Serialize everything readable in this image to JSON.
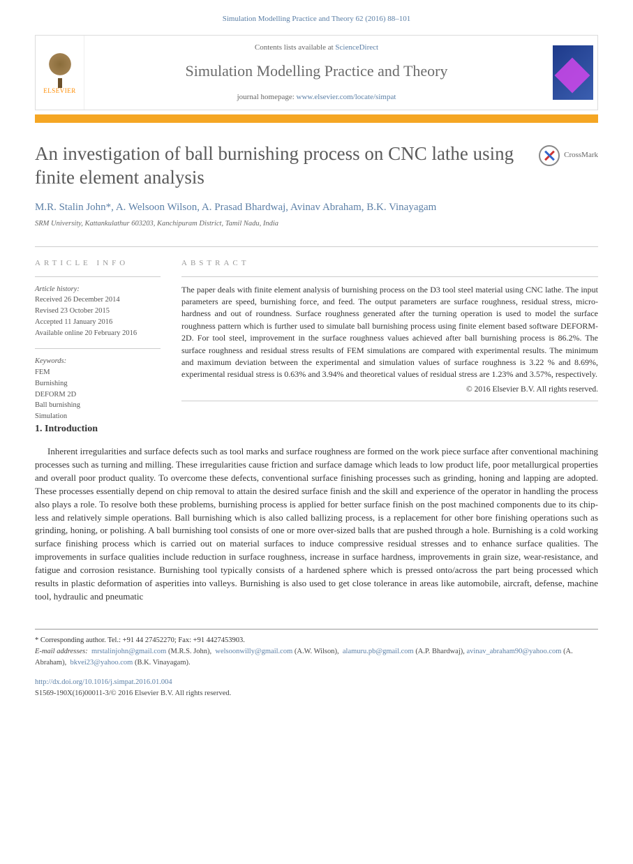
{
  "header": {
    "citation": "Simulation Modelling Practice and Theory 62 (2016) 88–101",
    "contents_prefix": "Contents lists available at ",
    "contents_link": "ScienceDirect",
    "journal_name": "Simulation Modelling Practice and Theory",
    "homepage_prefix": "journal homepage: ",
    "homepage_url": "www.elsevier.com/locate/simpat",
    "publisher": "ELSEVIER",
    "crossmark": "CrossMark"
  },
  "article": {
    "title": "An investigation of ball burnishing process on CNC lathe using finite element analysis",
    "authors": "M.R. Stalin John*, A. Welsoon Wilson, A. Prasad Bhardwaj, Avinav Abraham, B.K. Vinayagam",
    "affiliation": "SRM University, Kattankulathur 603203, Kanchipuram District, Tamil Nadu, India"
  },
  "info": {
    "header": "ARTICLE INFO",
    "history_label": "Article history:",
    "history": [
      "Received 26 December 2014",
      "Revised 23 October 2015",
      "Accepted 11 January 2016",
      "Available online 20 February 2016"
    ],
    "keywords_label": "Keywords:",
    "keywords": [
      "FEM",
      "Burnishing",
      "DEFORM 2D",
      "Ball burnishing",
      "Simulation"
    ]
  },
  "abs": {
    "header": "ABSTRACT",
    "text": "The paper deals with finite element analysis of burnishing process on the D3 tool steel material using CNC lathe. The input parameters are speed, burnishing force, and feed. The output parameters are surface roughness, residual stress, micro-hardness and out of roundness. Surface roughness generated after the turning operation is used to model the surface roughness pattern which is further used to simulate ball burnishing process using finite element based software DEFORM-2D. For tool steel, improvement in the surface roughness values achieved after ball burnishing process is 86.2%. The surface roughness and residual stress results of FEM simulations are compared with experimental results. The minimum and maximum deviation between the experimental and simulation values of surface roughness is 3.22 % and 8.69%, experimental residual stress is 0.63% and 3.94% and theoretical values of residual stress are 1.23% and 3.57%, respectively.",
    "copyright": "© 2016 Elsevier B.V. All rights reserved."
  },
  "intro": {
    "heading": "1. Introduction",
    "para": "Inherent irregularities and surface defects such as tool marks and surface roughness are formed on the work piece surface after conventional machining processes such as turning and milling. These irregularities cause friction and surface damage which leads to low product life, poor metallurgical properties and overall poor product quality. To overcome these defects, conventional surface finishing processes such as grinding, honing and lapping are adopted. These processes essentially depend on chip removal to attain the desired surface finish and the skill and experience of the operator in handling the process also plays a role. To resolve both these problems, burnishing process is applied for better surface finish on the post machined components due to its chip-less and relatively simple operations. Ball burnishing which is also called ballizing process, is a replacement for other bore finishing operations such as grinding, honing, or polishing. A ball burnishing tool consists of one or more over-sized balls that are pushed through a hole. Burnishing is a cold working surface finishing process which is carried out on material surfaces to induce compressive residual stresses and to enhance surface qualities. The improvements in surface qualities include reduction in surface roughness, increase in surface hardness, improvements in grain size, wear-resistance, and fatigue and corrosion resistance. Burnishing tool typically consists of a hardened sphere which is pressed onto/across the part being processed which results in plastic deformation of asperities into valleys. Burnishing is also used to get close tolerance in areas like automobile, aircraft, defense, machine tool, hydraulic and pneumatic"
  },
  "footer": {
    "corr_label": "* Corresponding author. Tel.: +91 44 27452270; Fax: +91 4427453903.",
    "emails_label": "E-mail addresses:",
    "emails": [
      {
        "addr": "mrstalinjohn@gmail.com",
        "who": "(M.R.S. John)"
      },
      {
        "addr": "welsoonwilly@gmail.com",
        "who": "(A.W. Wilson)"
      },
      {
        "addr": "alamuru.pb@gmail.com",
        "who": "(A.P. Bhardwaj)"
      },
      {
        "addr": "avinav_abraham90@yahoo.com",
        "who": "(A. Abraham)"
      },
      {
        "addr": "bkvei23@yahoo.com",
        "who": "(B.K. Vinayagam)."
      }
    ],
    "doi": "http://dx.doi.org/10.1016/j.simpat.2016.01.004",
    "issn": "S1569-190X(16)00011-3/© 2016 Elsevier B.V. All rights reserved."
  },
  "colors": {
    "link": "#5b7fa6",
    "orange_bar": "#f5a623",
    "title_gray": "#5a5a5a",
    "text": "#333333"
  }
}
